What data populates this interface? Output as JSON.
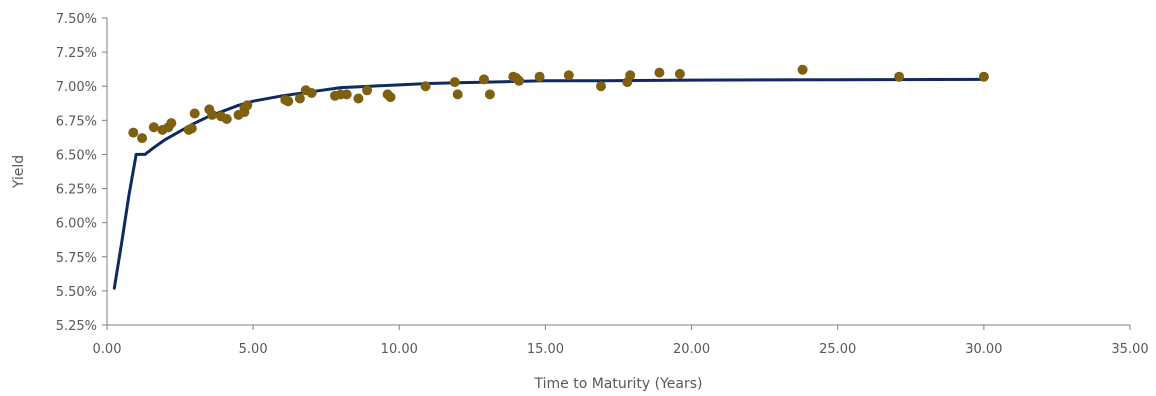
{
  "chart_data": {
    "type": "scatter",
    "xlabel": "Time to Maturity (Years)",
    "ylabel": "Yield",
    "xlim": [
      0,
      35
    ],
    "ylim": [
      5.25,
      7.5
    ],
    "xticks": [
      "0.00",
      "5.00",
      "10.00",
      "15.00",
      "20.00",
      "25.00",
      "30.00",
      "35.00"
    ],
    "yticks": [
      "5.25%",
      "5.50%",
      "5.75%",
      "6.00%",
      "6.25%",
      "6.50%",
      "6.75%",
      "7.00%",
      "7.25%",
      "7.50%"
    ],
    "grid": false,
    "colors": {
      "points": "#7F6010",
      "curve": "#0E2A5E",
      "axis": "#7F7F7F"
    },
    "series": [
      {
        "type": "scatter",
        "points": [
          [
            0.9,
            6.66
          ],
          [
            1.2,
            6.62
          ],
          [
            1.6,
            6.7
          ],
          [
            1.9,
            6.68
          ],
          [
            2.1,
            6.7
          ],
          [
            2.2,
            6.73
          ],
          [
            2.8,
            6.68
          ],
          [
            2.9,
            6.69
          ],
          [
            3.0,
            6.8
          ],
          [
            3.5,
            6.83
          ],
          [
            3.6,
            6.79
          ],
          [
            3.9,
            6.78
          ],
          [
            4.1,
            6.76
          ],
          [
            4.5,
            6.79
          ],
          [
            4.7,
            6.81
          ],
          [
            4.7,
            6.84
          ],
          [
            4.8,
            6.86
          ],
          [
            6.1,
            6.9
          ],
          [
            6.2,
            6.89
          ],
          [
            6.6,
            6.91
          ],
          [
            6.8,
            6.97
          ],
          [
            7.0,
            6.95
          ],
          [
            7.8,
            6.93
          ],
          [
            8.0,
            6.94
          ],
          [
            8.2,
            6.94
          ],
          [
            8.6,
            6.91
          ],
          [
            8.9,
            6.97
          ],
          [
            9.6,
            6.94
          ],
          [
            9.7,
            6.92
          ],
          [
            10.9,
            7.0
          ],
          [
            11.9,
            7.03
          ],
          [
            12.0,
            6.94
          ],
          [
            12.9,
            7.05
          ],
          [
            13.1,
            6.94
          ],
          [
            13.9,
            7.07
          ],
          [
            14.0,
            7.06
          ],
          [
            14.1,
            7.04
          ],
          [
            14.8,
            7.07
          ],
          [
            15.8,
            7.08
          ],
          [
            16.9,
            7.0
          ],
          [
            17.8,
            7.03
          ],
          [
            17.9,
            7.08
          ],
          [
            18.9,
            7.1
          ],
          [
            19.6,
            7.09
          ],
          [
            23.8,
            7.12
          ],
          [
            27.1,
            7.07
          ],
          [
            30.0,
            7.07
          ]
        ]
      },
      {
        "type": "line",
        "points": [
          [
            0.25,
            5.52
          ],
          [
            0.5,
            5.85
          ],
          [
            0.75,
            6.2
          ],
          [
            1.0,
            6.5
          ],
          [
            1.3,
            6.5
          ],
          [
            1.6,
            6.55
          ],
          [
            2.0,
            6.61
          ],
          [
            2.5,
            6.67
          ],
          [
            3.0,
            6.73
          ],
          [
            3.5,
            6.78
          ],
          [
            4.0,
            6.82
          ],
          [
            4.5,
            6.86
          ],
          [
            5.0,
            6.89
          ],
          [
            6.0,
            6.93
          ],
          [
            7.0,
            6.96
          ],
          [
            8.0,
            6.99
          ],
          [
            9.0,
            7.0
          ],
          [
            10.0,
            7.01
          ],
          [
            11.0,
            7.02
          ],
          [
            12.0,
            7.025
          ],
          [
            13.0,
            7.03
          ],
          [
            14.0,
            7.035
          ],
          [
            15.0,
            7.04
          ],
          [
            17.0,
            7.04
          ],
          [
            20.0,
            7.045
          ],
          [
            25.0,
            7.048
          ],
          [
            30.0,
            7.05
          ]
        ]
      }
    ]
  }
}
